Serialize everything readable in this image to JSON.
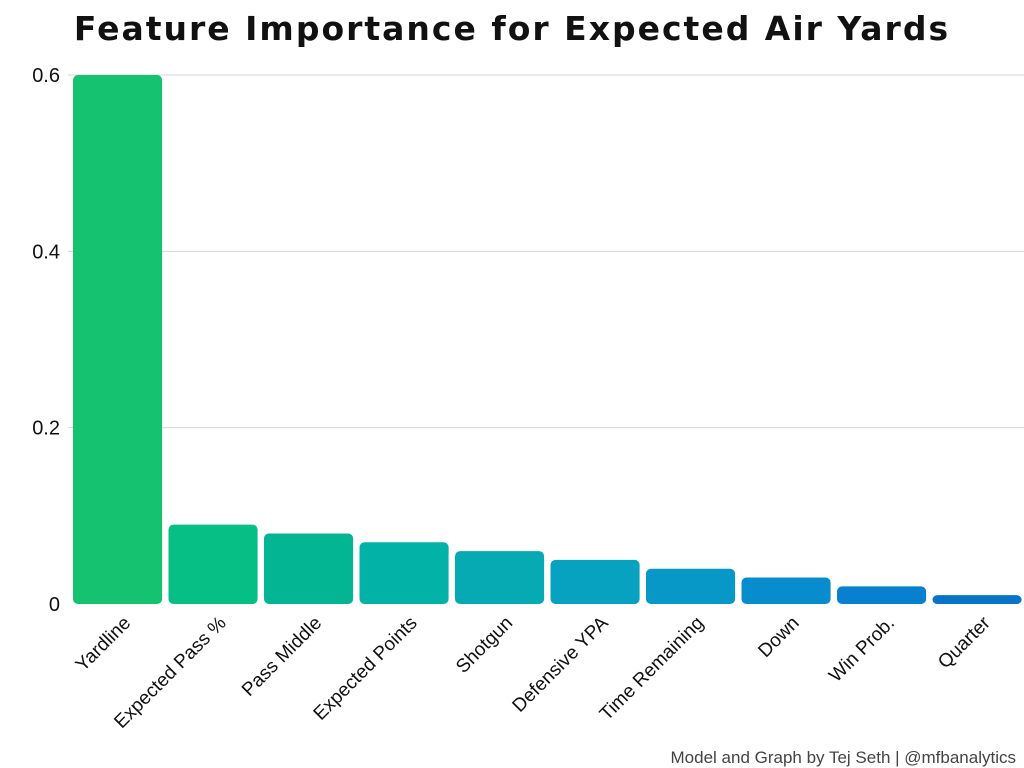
{
  "chart_data": {
    "type": "bar",
    "title": "Feature Importance for Expected Air Yards",
    "xlabel": "",
    "ylabel": "",
    "caption": "Model and Graph by Tej Seth | @mfbanalytics",
    "categories": [
      "Yardline",
      "Expected Pass %",
      "Pass Middle",
      "Expected Points",
      "Shotgun",
      "Defensive YPA",
      "Time Remaining",
      "Down",
      "Win Prob.",
      "Quarter"
    ],
    "values": [
      0.6,
      0.09,
      0.08,
      0.07,
      0.06,
      0.05,
      0.04,
      0.03,
      0.02,
      0.01
    ],
    "colors": [
      "#14c26f",
      "#06bf85",
      "#04b593",
      "#03b2a7",
      "#05aab3",
      "#06a2c0",
      "#0798c8",
      "#078ccd",
      "#0781cf",
      "#0773c7"
    ],
    "ylim": [
      0,
      0.6
    ],
    "yticks": [
      0,
      0.2,
      0.4,
      0.6
    ],
    "ytick_labels": [
      "0",
      "0.2",
      "0.4",
      "0.6"
    ],
    "grid": true,
    "legend": "none"
  }
}
